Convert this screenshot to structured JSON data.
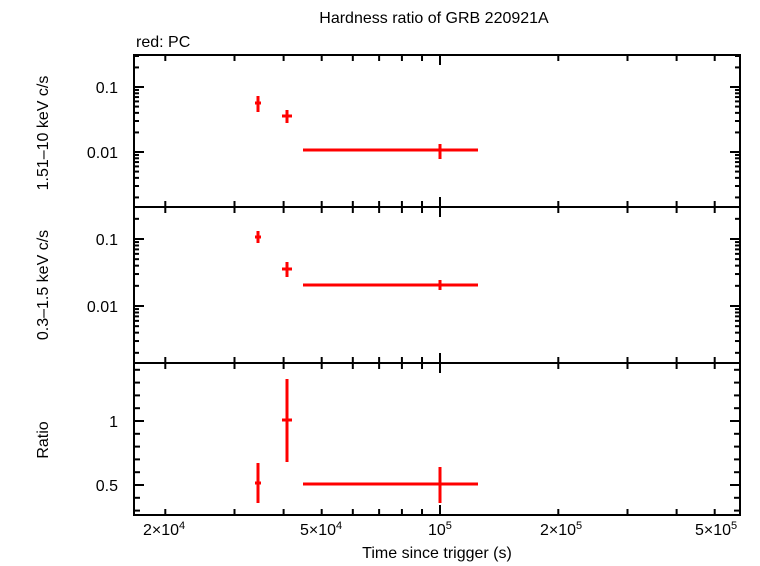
{
  "chart_data": [
    {
      "type": "scatter",
      "panel": "top",
      "title": "Hardness ratio of GRB 220921A",
      "legend": "red: PC",
      "xlabel": "Time since trigger (s)",
      "ylabel": "1.51–10 keV c/s",
      "xscale": "log",
      "yscale": "log",
      "xlim": [
        16600,
        580000
      ],
      "ylim": [
        0.0013,
        0.28
      ],
      "yticks": [
        "0.1",
        "0.01"
      ],
      "series": [
        {
          "name": "PC",
          "color": "#ff0000",
          "points": [
            {
              "x": 34500,
              "y": 0.057,
              "xerr": [
                33800,
                35100
              ],
              "yerr": [
                0.046,
                0.071
              ]
            },
            {
              "x": 40800,
              "y": 0.036,
              "xerr": [
                39700,
                42000
              ],
              "yerr": [
                0.03,
                0.042
              ]
            },
            {
              "x": 100000,
              "y": 0.0107,
              "xerr": [
                44800,
                125000
              ],
              "yerr": [
                0.0088,
                0.013
              ]
            }
          ]
        }
      ]
    },
    {
      "type": "scatter",
      "panel": "middle",
      "ylabel": "0.3–1.5 keV c/s",
      "xscale": "log",
      "yscale": "log",
      "xlim": [
        16600,
        580000
      ],
      "ylim": [
        0.0016,
        0.28
      ],
      "yticks": [
        "0.1",
        "0.01"
      ],
      "series": [
        {
          "name": "PC",
          "color": "#ff0000",
          "points": [
            {
              "x": 34500,
              "y": 0.107,
              "xerr": [
                33800,
                35100
              ],
              "yerr": [
                0.093,
                0.123
              ]
            },
            {
              "x": 40800,
              "y": 0.036,
              "xerr": [
                39700,
                42000
              ],
              "yerr": [
                0.03,
                0.043
              ]
            },
            {
              "x": 100000,
              "y": 0.021,
              "xerr": [
                44800,
                125000
              ],
              "yerr": [
                0.019,
                0.023
              ]
            }
          ]
        }
      ]
    },
    {
      "type": "scatter",
      "panel": "bottom",
      "ylabel": "Ratio",
      "xlabel": "Time since trigger (s)",
      "xscale": "log",
      "yscale": "linear",
      "xlim": [
        16600,
        580000
      ],
      "ylim": [
        0.28,
        1.44
      ],
      "yticks": [
        "1",
        "0.5"
      ],
      "xticks": [
        "2×10⁴",
        "5×10⁴",
        "10⁵",
        "2×10⁵",
        "5×10⁵"
      ],
      "series": [
        {
          "name": "PC",
          "color": "#ff0000",
          "points": [
            {
              "x": 34500,
              "y": 0.52,
              "xerr": [
                33800,
                35100
              ],
              "yerr": [
                0.33,
                0.67
              ]
            },
            {
              "x": 40800,
              "y": 1.01,
              "xerr": [
                39700,
                42000
              ],
              "yerr": [
                0.7,
                1.34
              ]
            },
            {
              "x": 100000,
              "y": 0.5,
              "xerr": [
                44800,
                125000
              ],
              "yerr": [
                0.33,
                0.64
              ]
            }
          ]
        }
      ]
    }
  ],
  "labels": {
    "title": "Hardness ratio of GRB 220921A",
    "legend": "red: PC",
    "xlabel": "Time since trigger (s)",
    "ylabel_top": "1.51–10 keV c/s",
    "ylabel_middle": "0.3–1.5 keV c/s",
    "ylabel_bottom": "Ratio",
    "top_yticks": [
      "0.1",
      "0.01"
    ],
    "mid_yticks": [
      "0.1",
      "0.01"
    ],
    "bot_yticks": [
      "1",
      "0.5"
    ],
    "xticks": [
      {
        "mant": "2×10",
        "exp": "4"
      },
      {
        "mant": "5×10",
        "exp": "4"
      },
      {
        "mant": "10",
        "exp": "5"
      },
      {
        "mant": "2×10",
        "exp": "5"
      },
      {
        "mant": "5×10",
        "exp": "5"
      }
    ]
  },
  "colors": {
    "series": "#ff0000",
    "axis": "#000000"
  }
}
